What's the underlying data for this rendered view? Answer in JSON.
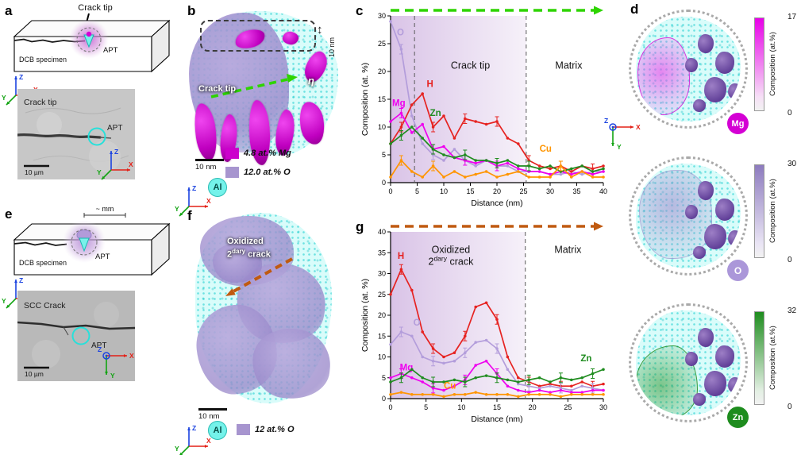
{
  "axes_triad": {
    "x": "X",
    "y": "Y",
    "z": "Z"
  },
  "panel_a": {
    "label": "a",
    "crack_tip_arrow": "Crack tip",
    "specimen": "DCB specimen",
    "apt": "APT",
    "micrograph": {
      "title": "Crack tip",
      "apt": "APT",
      "scalebar": "10 µm"
    }
  },
  "panel_b": {
    "label": "b",
    "depth_annotation": "10 nm",
    "crack_tip": "Crack tip",
    "eta": "η",
    "scalebar": "10 nm",
    "al": "Al",
    "legend": [
      {
        "text": "4.8 at.% Mg",
        "color": "#cc00cc"
      },
      {
        "text": "12.0 at.% O",
        "color": "#a795cf"
      }
    ]
  },
  "panel_c": {
    "label": "c",
    "region1": "Crack tip",
    "region2": "Matrix"
  },
  "panel_d": {
    "label": "d",
    "maps": [
      {
        "element": "Mg",
        "max": "17",
        "min": "0",
        "bar_label": "Composition (at.%)",
        "color": "#d400d4"
      },
      {
        "element": "O",
        "max": "30",
        "min": "0",
        "bar_label": "Composition (at.%)",
        "color": "#8d7bbe"
      },
      {
        "element": "Zn",
        "max": "32",
        "min": "0",
        "bar_label": "Composition (at.%)",
        "color": "#1e8c1e"
      }
    ]
  },
  "panel_e": {
    "label": "e",
    "mm": "~ mm",
    "specimen": "DCB specimen",
    "apt": "APT",
    "micrograph": {
      "title": "SCC Crack",
      "apt": "APT",
      "scalebar": "10 µm"
    }
  },
  "panel_f": {
    "label": "f",
    "arrow_line1": "Oxidized",
    "arrow_line2_base": "2",
    "arrow_line2_sup": "dary",
    "arrow_line2_rest": " crack",
    "scalebar": "10 nm",
    "al": "Al",
    "legend": [
      {
        "text": "12 at.% O",
        "color": "#a795cf"
      }
    ]
  },
  "panel_g": {
    "label": "g",
    "region1": "Oxidized 2dary crack",
    "region2": "Matrix"
  },
  "chart_data": [
    {
      "id": "chart-c",
      "type": "line",
      "xlabel": "Distance (nm)",
      "ylabel": "Composition (at. %)",
      "xlim": [
        0,
        40
      ],
      "ylim": [
        0,
        30
      ],
      "xticks": [
        0,
        5,
        10,
        15,
        20,
        25,
        30,
        35,
        40
      ],
      "yticks": [
        0,
        5,
        10,
        15,
        20,
        25,
        30
      ],
      "region_boundary_x": 25.5,
      "dashed_x": [
        4.5,
        25.5
      ],
      "arrow_color": "#2ed400",
      "shade_color": "#b488cf",
      "x": [
        0,
        2,
        4,
        6,
        8,
        10,
        12,
        14,
        16,
        18,
        20,
        22,
        24,
        26,
        28,
        30,
        32,
        34,
        36,
        38,
        40
      ],
      "series": [
        {
          "name": "O",
          "color": "#b39ddb",
          "label_at": [
            1.2,
            26.5
          ],
          "values": [
            29,
            24,
            12,
            7,
            5,
            4,
            6,
            4,
            3,
            4,
            3,
            3,
            2,
            2,
            2,
            1.5,
            1.5,
            2,
            1.5,
            2,
            2
          ]
        },
        {
          "name": "H",
          "color": "#e62321",
          "label_at": [
            6.8,
            17.2
          ],
          "values": [
            7,
            10,
            14,
            16,
            10,
            12,
            8,
            11.5,
            11,
            10.5,
            11,
            8,
            7,
            4,
            3,
            2.5,
            3,
            2,
            3,
            2.5,
            3
          ]
        },
        {
          "name": "Mg",
          "color": "#ee00ee",
          "label_at": [
            0.3,
            13.8
          ],
          "values": [
            11,
            12.5,
            9,
            10.5,
            6,
            6.5,
            4.5,
            4,
            3.5,
            4,
            3,
            3.5,
            2.5,
            2,
            2,
            1.5,
            2,
            1.5,
            2,
            1.5,
            2
          ]
        },
        {
          "name": "Zn",
          "color": "#1f8c1f",
          "label_at": [
            7.4,
            12.0
          ],
          "values": [
            7,
            8.5,
            10,
            8,
            6,
            5,
            4.5,
            5,
            4,
            4,
            3.5,
            4,
            3,
            3,
            2.5,
            3,
            2,
            2.5,
            3,
            2,
            2.5
          ]
        },
        {
          "name": "Cu",
          "color": "#ff9500",
          "label_at": [
            28,
            5.6
          ],
          "values": [
            1,
            4,
            2,
            1,
            3,
            1,
            2,
            1,
            1.5,
            2,
            1,
            1.5,
            2,
            1,
            1,
            1,
            3,
            1,
            2,
            1,
            1
          ]
        }
      ],
      "region_labels": [
        {
          "x": 15,
          "y": 20.5,
          "lines": [
            [
              {
                "t": "Crack tip"
              }
            ]
          ]
        },
        {
          "x": 33.5,
          "y": 20.5,
          "lines": [
            [
              {
                "t": "Matrix"
              }
            ]
          ]
        }
      ]
    },
    {
      "id": "chart-g",
      "type": "line",
      "xlabel": "Distance (nm)",
      "ylabel": "Composition (at. %)",
      "xlim": [
        0,
        30
      ],
      "ylim": [
        0,
        40
      ],
      "xticks": [
        0,
        5,
        10,
        15,
        20,
        25,
        30
      ],
      "yticks": [
        0,
        5,
        10,
        15,
        20,
        25,
        30,
        35,
        40
      ],
      "region_boundary_x": 19,
      "dashed_x": [
        19
      ],
      "arrow_color": "#c05a10",
      "shade_color": "#b488cf",
      "x": [
        0,
        1.5,
        3,
        4.5,
        6,
        7.5,
        9,
        10.5,
        12,
        13.5,
        15,
        16.5,
        18,
        19.5,
        21,
        22.5,
        24,
        25.5,
        27,
        28.5,
        30
      ],
      "series": [
        {
          "name": "H",
          "color": "#e62321",
          "label_at": [
            1.0,
            33.5
          ],
          "values": [
            25,
            31,
            26,
            16,
            12,
            10,
            11,
            15,
            22,
            23,
            19,
            10,
            5,
            4,
            3,
            3.5,
            3,
            3,
            4,
            3,
            3.5
          ]
        },
        {
          "name": "O",
          "color": "#b39ddb",
          "label_at": [
            3.2,
            17.5
          ],
          "values": [
            13,
            16,
            15,
            10,
            9,
            8.5,
            9,
            11,
            13.5,
            14,
            12,
            7,
            3.5,
            3,
            2.5,
            3,
            2.5,
            2,
            3,
            2.5,
            2
          ]
        },
        {
          "name": "Mg",
          "color": "#ee00ee",
          "label_at": [
            1.3,
            6.8
          ],
          "values": [
            5,
            6,
            5,
            4,
            2.5,
            2,
            3,
            4.5,
            8,
            9,
            6,
            3,
            2,
            1.5,
            2,
            1.5,
            2,
            1.5,
            1.5,
            2,
            2
          ]
        },
        {
          "name": "Zn",
          "color": "#1f8c1f",
          "label_at": [
            26.8,
            9.0
          ],
          "values": [
            4,
            5,
            7,
            5,
            4,
            4,
            4.5,
            4,
            5,
            5.5,
            5,
            4.5,
            4,
            4.5,
            5,
            4,
            5,
            4.5,
            5,
            6,
            7
          ]
        },
        {
          "name": "Cu",
          "color": "#ff9500",
          "label_at": [
            7.5,
            2.4
          ],
          "values": [
            1,
            1.5,
            1,
            1,
            1,
            0.5,
            1,
            1,
            1.5,
            1,
            1,
            1,
            0.5,
            1,
            1,
            1,
            0.5,
            1,
            1,
            1,
            1
          ]
        }
      ],
      "region_labels": [
        {
          "x": 8.5,
          "y": 35,
          "lines": [
            [
              {
                "t": "Oxidized"
              }
            ],
            [
              {
                "t": "2"
              },
              {
                "t": "dary",
                "sup": true
              },
              {
                "t": " crack"
              }
            ]
          ]
        },
        {
          "x": 25,
          "y": 35,
          "lines": [
            [
              {
                "t": "Matrix"
              }
            ]
          ]
        }
      ]
    }
  ]
}
